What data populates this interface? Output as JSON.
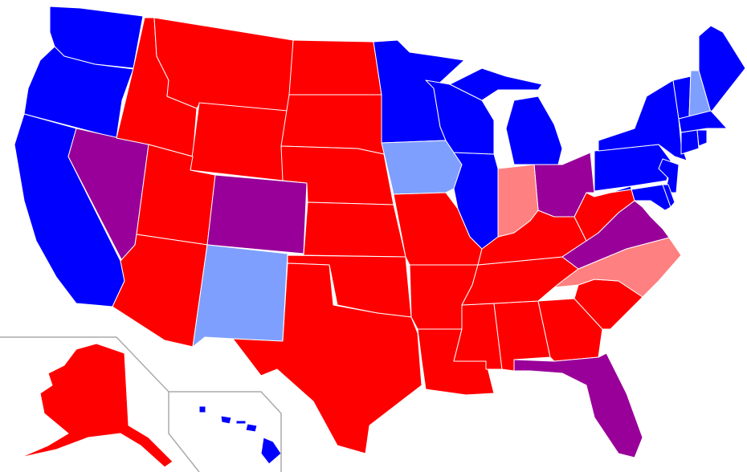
{
  "map": {
    "palette": {
      "blue": "#0000ff",
      "red": "#ff0000",
      "purple": "#990099",
      "light_blue": "#7f9fff",
      "pink": "#ff8080"
    },
    "inset_border_color": "#aaaaaa",
    "state_colors": {
      "WA": "blue",
      "OR": "blue",
      "CA": "blue",
      "NV": "purple",
      "ID": "red",
      "MT": "red",
      "WY": "red",
      "UT": "red",
      "CO": "purple",
      "AZ": "red",
      "NM": "light_blue",
      "ND": "red",
      "SD": "red",
      "NE": "red",
      "KS": "red",
      "OK": "red",
      "TX": "red",
      "MN": "blue",
      "IA": "light_blue",
      "MO": "red",
      "AR": "red",
      "LA": "red",
      "WI": "blue",
      "IL": "blue",
      "MI": "blue",
      "IN": "pink",
      "OH": "purple",
      "KY": "red",
      "TN": "red",
      "MS": "red",
      "AL": "red",
      "GA": "red",
      "FL": "purple",
      "SC": "red",
      "NC": "pink",
      "VA": "purple",
      "WV": "red",
      "MD": "blue",
      "DE": "blue",
      "PA": "blue",
      "NJ": "blue",
      "NY": "blue",
      "CT": "blue",
      "RI": "blue",
      "MA": "blue",
      "VT": "blue",
      "NH": "light_blue",
      "ME": "blue",
      "AK": "red",
      "HI": "blue"
    }
  }
}
